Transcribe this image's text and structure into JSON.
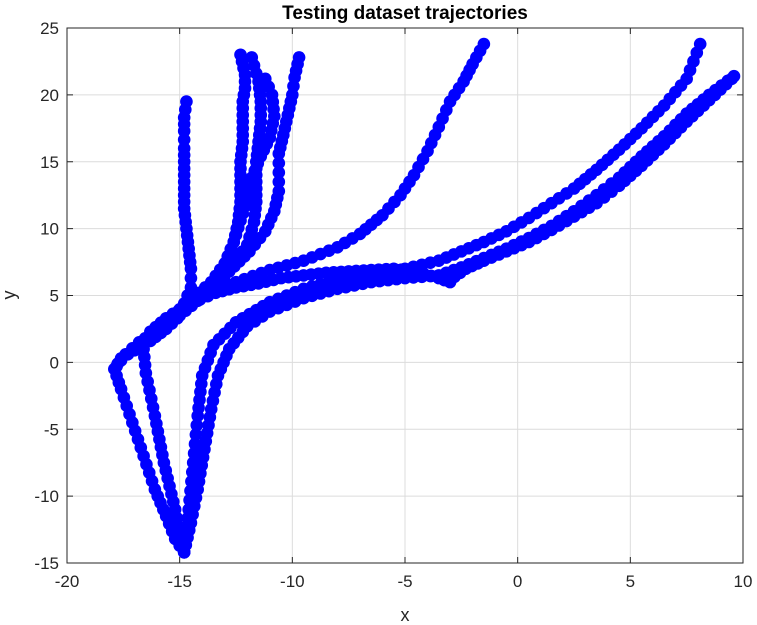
{
  "chart_data": {
    "type": "scatter",
    "title": "Testing dataset trajectories",
    "xlabel": "x",
    "ylabel": "y",
    "xlim": [
      -20,
      10
    ],
    "ylim": [
      -15,
      25
    ],
    "xticks": [
      -20,
      -15,
      -10,
      -5,
      0,
      5,
      10
    ],
    "yticks": [
      -15,
      -10,
      -5,
      0,
      5,
      10,
      15,
      20,
      25
    ],
    "grid": true,
    "marker_color": "#0000ff",
    "marker": "filled-circle",
    "series": [
      {
        "points": [
          [
            -14.8,
            -14.2
          ],
          [
            -15.2,
            -13.2
          ],
          [
            -15.6,
            -11.5
          ],
          [
            -16.1,
            -9.5
          ],
          [
            -16.6,
            -7.0
          ],
          [
            -17.1,
            -4.5
          ],
          [
            -17.6,
            -2.0
          ],
          [
            -17.9,
            -0.5
          ],
          [
            -17.6,
            0.3
          ],
          [
            -17.0,
            0.9
          ],
          [
            -16.3,
            1.6
          ],
          [
            -15.6,
            2.5
          ],
          [
            -15.1,
            3.3
          ],
          [
            -14.7,
            4.3
          ],
          [
            -14.1,
            4.7
          ],
          [
            -13.4,
            5.2
          ],
          [
            -12.5,
            5.6
          ],
          [
            -11.5,
            5.9
          ],
          [
            -10.5,
            6.3
          ],
          [
            -9.5,
            6.5
          ],
          [
            -8.5,
            6.7
          ],
          [
            -7.5,
            6.8
          ],
          [
            -6.5,
            6.9
          ],
          [
            -5.5,
            7.0
          ],
          [
            -4.5,
            6.8
          ],
          [
            -3.5,
            6.3
          ],
          [
            -3.0,
            6.0
          ],
          [
            -2.8,
            6.4
          ],
          [
            -2.3,
            7.0
          ],
          [
            -1.5,
            7.6
          ],
          [
            -0.5,
            8.3
          ],
          [
            0.5,
            9.0
          ],
          [
            1.5,
            9.9
          ],
          [
            2.5,
            10.9
          ],
          [
            3.5,
            11.9
          ],
          [
            4.5,
            13.2
          ],
          [
            5.5,
            14.7
          ],
          [
            6.5,
            16.3
          ],
          [
            7.5,
            18.0
          ],
          [
            8.5,
            19.6
          ],
          [
            9.5,
            21.2
          ]
        ]
      },
      {
        "points": [
          [
            -14.8,
            -14.2
          ],
          [
            -14.5,
            -12.0
          ],
          [
            -14.2,
            -9.5
          ],
          [
            -13.9,
            -6.5
          ],
          [
            -13.6,
            -3.5
          ],
          [
            -13.3,
            -1.0
          ],
          [
            -12.8,
            1.0
          ],
          [
            -12.0,
            2.7
          ],
          [
            -11.0,
            3.8
          ],
          [
            -9.5,
            4.8
          ],
          [
            -8.0,
            5.5
          ],
          [
            -6.5,
            6.0
          ],
          [
            -5.0,
            6.3
          ],
          [
            -3.5,
            6.5
          ],
          [
            -2.5,
            7.1
          ],
          [
            -1.5,
            7.8
          ],
          [
            -0.5,
            8.5
          ],
          [
            0.5,
            9.3
          ],
          [
            1.5,
            10.2
          ],
          [
            2.5,
            11.3
          ],
          [
            3.5,
            12.5
          ],
          [
            4.5,
            13.8
          ],
          [
            5.5,
            15.4
          ],
          [
            6.5,
            16.9
          ],
          [
            7.5,
            18.6
          ],
          [
            8.5,
            20.0
          ],
          [
            9.6,
            21.4
          ]
        ]
      },
      {
        "points": [
          [
            -14.8,
            -14.2
          ],
          [
            -14.6,
            -11.0
          ],
          [
            -14.4,
            -7.5
          ],
          [
            -14.2,
            -4.0
          ],
          [
            -14.0,
            -1.0
          ],
          [
            -13.5,
            1.3
          ],
          [
            -12.5,
            3.0
          ],
          [
            -11.0,
            4.5
          ],
          [
            -9.5,
            5.5
          ],
          [
            -8.0,
            6.2
          ],
          [
            -6.5,
            6.6
          ],
          [
            -5.0,
            7.0
          ],
          [
            -3.5,
            7.6
          ],
          [
            -2.5,
            8.3
          ],
          [
            -1.5,
            9.0
          ],
          [
            -0.5,
            9.8
          ],
          [
            0.5,
            10.8
          ],
          [
            1.5,
            11.9
          ],
          [
            2.5,
            13.0
          ],
          [
            3.5,
            14.4
          ],
          [
            4.5,
            15.9
          ],
          [
            5.5,
            17.5
          ],
          [
            6.5,
            19.2
          ],
          [
            7.5,
            21.2
          ],
          [
            8.1,
            23.8
          ]
        ]
      },
      {
        "points": [
          [
            -14.8,
            -14.2
          ],
          [
            -15.2,
            -11.0
          ],
          [
            -15.7,
            -7.5
          ],
          [
            -16.1,
            -4.0
          ],
          [
            -16.5,
            -0.8
          ],
          [
            -16.6,
            1.0
          ],
          [
            -16.3,
            2.3
          ],
          [
            -15.6,
            3.3
          ],
          [
            -14.7,
            4.3
          ],
          [
            -13.7,
            5.2
          ],
          [
            -12.5,
            6.0
          ],
          [
            -11.0,
            6.9
          ],
          [
            -9.5,
            7.6
          ],
          [
            -8.0,
            8.6
          ],
          [
            -7.0,
            9.6
          ],
          [
            -6.0,
            11.0
          ],
          [
            -5.2,
            12.5
          ],
          [
            -4.6,
            14.0
          ],
          [
            -4.0,
            15.8
          ],
          [
            -3.5,
            17.6
          ],
          [
            -3.0,
            19.5
          ],
          [
            -2.4,
            21.0
          ],
          [
            -2.0,
            22.3
          ],
          [
            -1.5,
            23.8
          ]
        ]
      },
      {
        "points": [
          [
            -17.8,
            -0.3
          ],
          [
            -17.4,
            0.6
          ],
          [
            -16.8,
            1.5
          ],
          [
            -16.0,
            2.4
          ],
          [
            -15.3,
            3.3
          ],
          [
            -14.8,
            4.4
          ],
          [
            -14.5,
            5.6
          ],
          [
            -14.5,
            7.0
          ],
          [
            -14.6,
            8.5
          ],
          [
            -14.7,
            10.0
          ],
          [
            -14.8,
            11.5
          ],
          [
            -14.8,
            13.0
          ],
          [
            -14.8,
            14.5
          ],
          [
            -14.8,
            16.0
          ],
          [
            -14.8,
            17.3
          ],
          [
            -14.8,
            18.3
          ],
          [
            -14.7,
            19.5
          ]
        ]
      },
      {
        "points": [
          [
            -15.5,
            3.0
          ],
          [
            -14.8,
            4.0
          ],
          [
            -14.0,
            5.0
          ],
          [
            -13.3,
            6.0
          ],
          [
            -12.9,
            7.5
          ],
          [
            -12.6,
            9.0
          ],
          [
            -12.4,
            10.5
          ],
          [
            -12.3,
            12.0
          ],
          [
            -12.3,
            13.5
          ],
          [
            -12.3,
            15.0
          ],
          [
            -12.2,
            16.5
          ],
          [
            -12.2,
            18.0
          ],
          [
            -12.2,
            19.5
          ],
          [
            -12.1,
            20.5
          ],
          [
            -12.1,
            21.5
          ],
          [
            -12.3,
            23.0
          ]
        ]
      },
      {
        "points": [
          [
            -15.0,
            3.5
          ],
          [
            -14.2,
            4.6
          ],
          [
            -13.4,
            5.8
          ],
          [
            -12.6,
            7.3
          ],
          [
            -12.0,
            8.8
          ],
          [
            -11.7,
            10.5
          ],
          [
            -11.6,
            12.0
          ],
          [
            -11.6,
            13.5
          ],
          [
            -11.6,
            15.0
          ],
          [
            -11.5,
            16.5
          ],
          [
            -11.4,
            18.0
          ],
          [
            -11.4,
            19.5
          ],
          [
            -11.5,
            21.0
          ],
          [
            -11.8,
            22.8
          ]
        ]
      },
      {
        "points": [
          [
            -14.6,
            4.2
          ],
          [
            -13.7,
            5.3
          ],
          [
            -12.8,
            6.8
          ],
          [
            -11.9,
            8.3
          ],
          [
            -11.2,
            9.8
          ],
          [
            -10.8,
            11.3
          ],
          [
            -10.6,
            12.8
          ],
          [
            -10.6,
            14.2
          ],
          [
            -10.6,
            15.6
          ],
          [
            -10.4,
            17.0
          ],
          [
            -10.2,
            18.5
          ],
          [
            -10.0,
            20.0
          ],
          [
            -9.9,
            21.3
          ],
          [
            -9.7,
            22.8
          ]
        ]
      },
      {
        "points": [
          [
            -15.2,
            3.6
          ],
          [
            -14.4,
            4.8
          ],
          [
            -13.6,
            6.0
          ],
          [
            -13.0,
            7.4
          ],
          [
            -12.6,
            9.0
          ],
          [
            -12.3,
            10.6
          ],
          [
            -12.0,
            12.2
          ],
          [
            -11.8,
            13.8
          ],
          [
            -11.4,
            15.4
          ],
          [
            -11.0,
            16.8
          ],
          [
            -10.8,
            18.4
          ],
          [
            -10.9,
            20.0
          ],
          [
            -11.2,
            21.2
          ]
        ]
      }
    ]
  }
}
